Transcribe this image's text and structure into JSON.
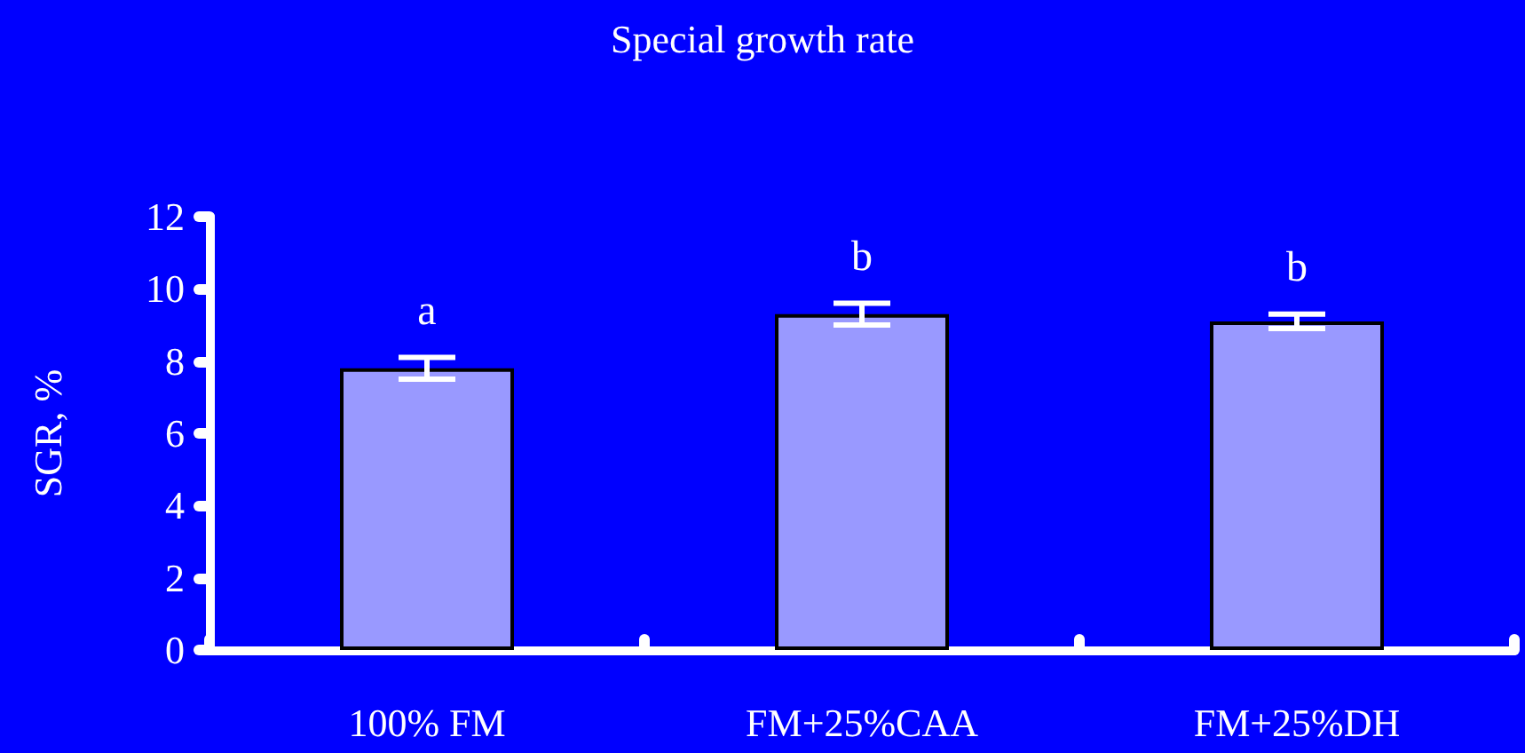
{
  "chart_data": {
    "type": "bar",
    "title": "Special growth rate",
    "ylabel": "SGR, %",
    "categories": [
      "100% FM",
      "FM+25%CAA",
      "FM+25%DH"
    ],
    "values": [
      7.8,
      9.3,
      9.1
    ],
    "errors": [
      0.3,
      0.3,
      0.2
    ],
    "color": "#9999ff",
    "ylim": [
      0,
      12
    ],
    "yticks": [
      0,
      2,
      4,
      6,
      8,
      10,
      12
    ],
    "grid": false,
    "annotations": [
      "a",
      "b",
      "b"
    ]
  }
}
